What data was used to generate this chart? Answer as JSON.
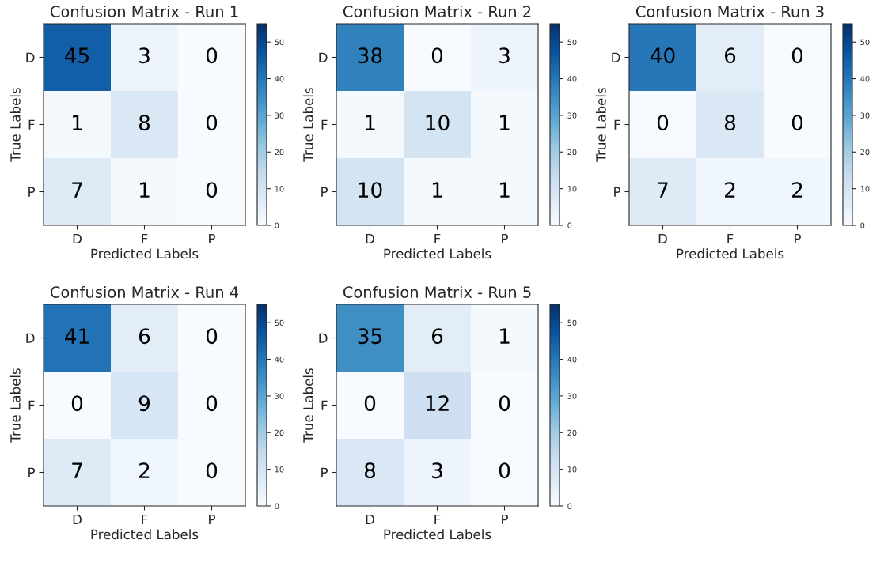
{
  "chart_data": [
    {
      "type": "heatmap",
      "title": "Confusion Matrix - Run 1",
      "xlabel": "Predicted Labels",
      "ylabel": "True Labels",
      "categories": [
        "D",
        "F",
        "P"
      ],
      "y_categories": [
        "D",
        "F",
        "P"
      ],
      "cells": [
        [
          45,
          3,
          0
        ],
        [
          1,
          8,
          0
        ],
        [
          7,
          1,
          0
        ]
      ],
      "data_labels": true,
      "clim": [
        0,
        55
      ],
      "cticks": [
        0,
        10,
        20,
        30,
        40,
        50
      ]
    },
    {
      "type": "heatmap",
      "title": "Confusion Matrix - Run 2",
      "xlabel": "Predicted Labels",
      "ylabel": "True Labels",
      "categories": [
        "D",
        "F",
        "P"
      ],
      "y_categories": [
        "D",
        "F",
        "P"
      ],
      "cells": [
        [
          38,
          0,
          3
        ],
        [
          1,
          10,
          1
        ],
        [
          10,
          1,
          1
        ]
      ],
      "data_labels": true,
      "clim": [
        0,
        55
      ],
      "cticks": [
        0,
        10,
        20,
        30,
        40,
        50
      ]
    },
    {
      "type": "heatmap",
      "title": "Confusion Matrix - Run 3",
      "xlabel": "Predicted Labels",
      "ylabel": "True Labels",
      "categories": [
        "D",
        "F",
        "P"
      ],
      "y_categories": [
        "D",
        "F",
        "P"
      ],
      "cells": [
        [
          40,
          6,
          0
        ],
        [
          0,
          8,
          0
        ],
        [
          7,
          2,
          2
        ]
      ],
      "data_labels": true,
      "clim": [
        0,
        55
      ],
      "cticks": [
        0,
        10,
        20,
        30,
        40,
        50
      ]
    },
    {
      "type": "heatmap",
      "title": "Confusion Matrix - Run 4",
      "xlabel": "Predicted Labels",
      "ylabel": "True Labels",
      "categories": [
        "D",
        "F",
        "P"
      ],
      "y_categories": [
        "D",
        "F",
        "P"
      ],
      "cells": [
        [
          41,
          6,
          0
        ],
        [
          0,
          9,
          0
        ],
        [
          7,
          2,
          0
        ]
      ],
      "data_labels": true,
      "clim": [
        0,
        55
      ],
      "cticks": [
        0,
        10,
        20,
        30,
        40,
        50
      ]
    },
    {
      "type": "heatmap",
      "title": "Confusion Matrix - Run 5",
      "xlabel": "Predicted Labels",
      "ylabel": "True Labels",
      "categories": [
        "D",
        "F",
        "P"
      ],
      "y_categories": [
        "D",
        "F",
        "P"
      ],
      "cells": [
        [
          35,
          6,
          1
        ],
        [
          0,
          12,
          0
        ],
        [
          8,
          3,
          0
        ]
      ],
      "data_labels": true,
      "clim": [
        0,
        55
      ],
      "cticks": [
        0,
        10,
        20,
        30,
        40,
        50
      ]
    }
  ]
}
